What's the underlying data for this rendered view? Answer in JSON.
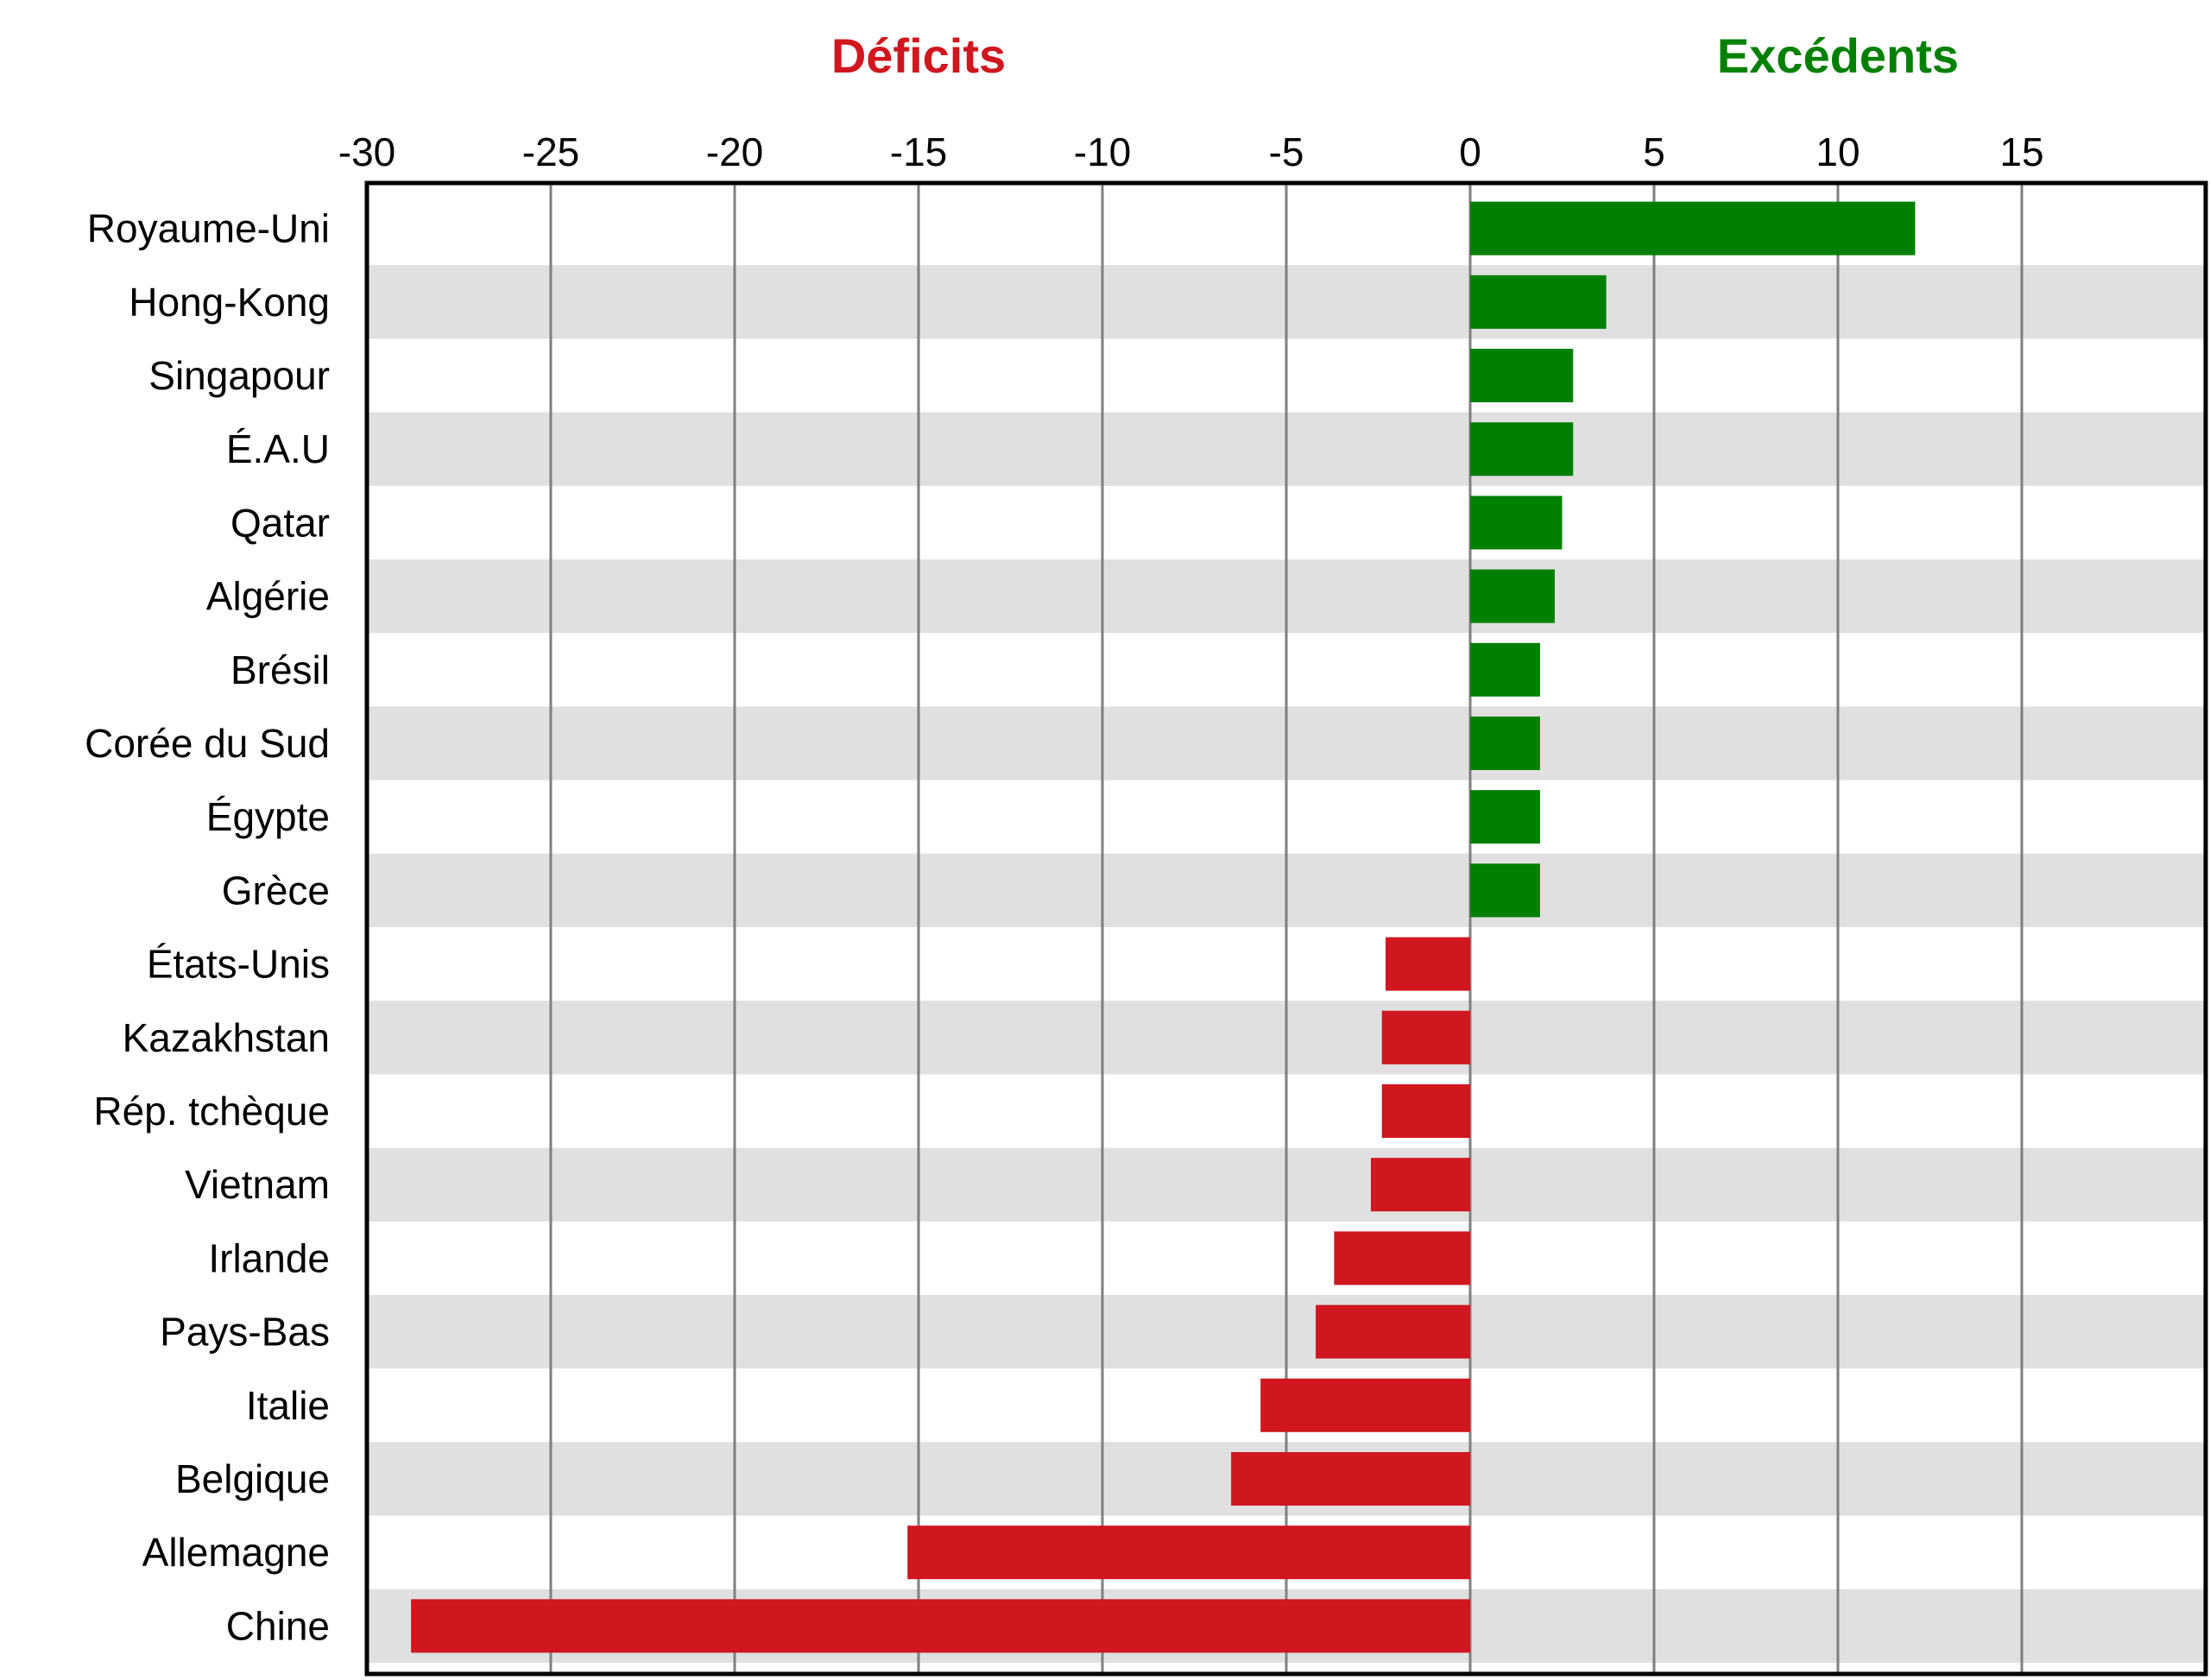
{
  "headers": {
    "left": "Déficits",
    "right": "Excédents"
  },
  "colors": {
    "deficit": "#d0161e",
    "surplus": "#008000",
    "band": "#e0e0e0",
    "grid": "#7f7f7f",
    "frame": "#000000"
  },
  "chart_data": {
    "type": "bar",
    "orientation": "horizontal",
    "xlim": [
      -30,
      20
    ],
    "x_ticks": [
      -30,
      -25,
      -20,
      -15,
      -10,
      -5,
      0,
      5,
      10,
      15
    ],
    "x_tick_labels": [
      "-30",
      "-25",
      "-20",
      "-15",
      "-10",
      "-5",
      "0",
      "5",
      "10",
      "15"
    ],
    "x_axis_position": "top",
    "grid": "vertical",
    "categories": [
      "Royaume-Uni",
      "Hong-Kong",
      "Singapour",
      "É.A.U",
      "Qatar",
      "Algérie",
      "Brésil",
      "Corée du Sud",
      "Égypte",
      "Grèce",
      "États-Unis",
      "Kazakhstan",
      "Rép. tchèque",
      "Vietnam",
      "Irlande",
      "Pays-Bas",
      "Italie",
      "Belgique",
      "Allemagne",
      "Chine"
    ],
    "values": [
      12.1,
      3.7,
      2.8,
      2.8,
      2.5,
      2.3,
      1.9,
      1.9,
      1.9,
      1.9,
      -2.3,
      -2.4,
      -2.4,
      -2.7,
      -3.7,
      -4.2,
      -5.7,
      -6.5,
      -15.3,
      -28.8
    ]
  }
}
